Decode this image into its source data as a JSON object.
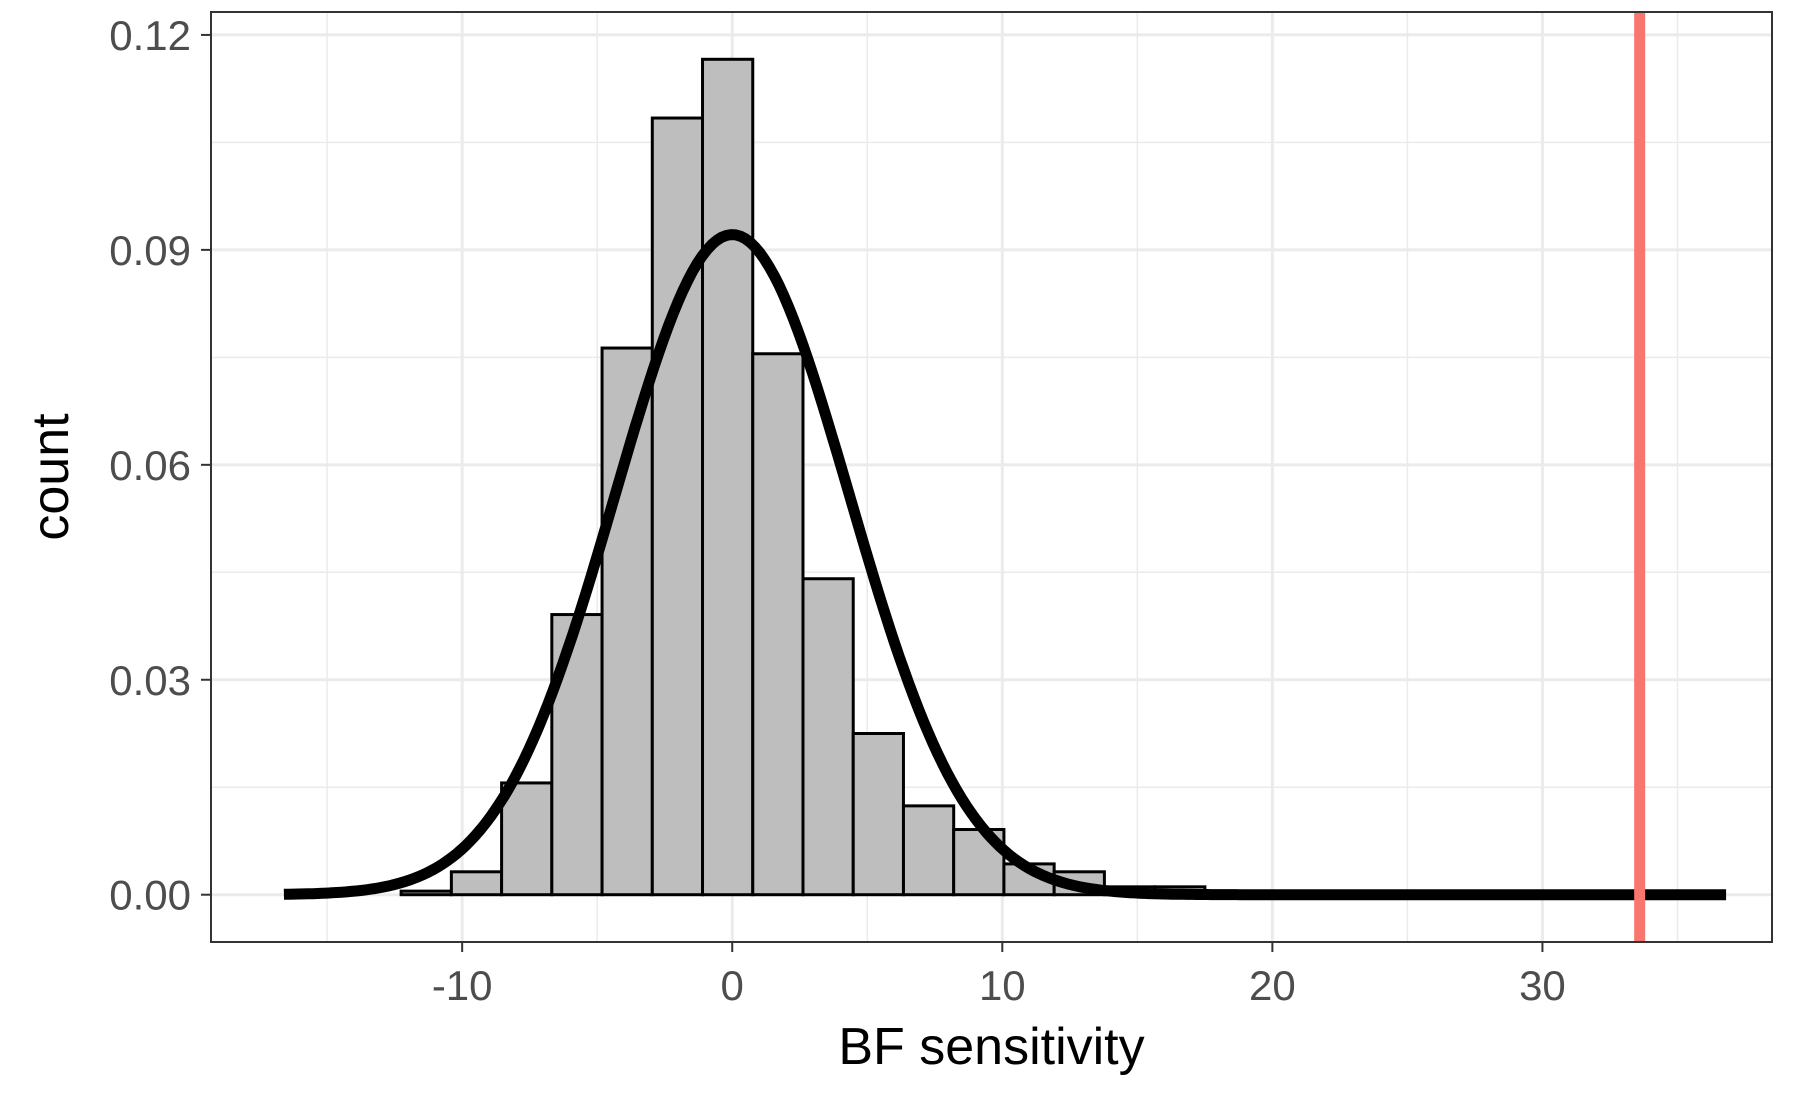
{
  "chart_data": {
    "type": "bar",
    "title": "",
    "xlabel": "BF sensitivity",
    "ylabel": "count",
    "xlim": [
      -19.3,
      38.5
    ],
    "ylim": [
      -0.0066,
      0.1232
    ],
    "x_major_ticks": [
      -10,
      0,
      10,
      20,
      30
    ],
    "x_tick_labels": [
      "-10",
      "0",
      "10",
      "20",
      "30"
    ],
    "x_minor_ticks": [
      -15,
      -5,
      5,
      15,
      25,
      35
    ],
    "y_major_ticks": [
      0,
      0.03,
      0.06,
      0.09,
      0.12
    ],
    "y_tick_labels": [
      "0.00",
      "0.03",
      "0.06",
      "0.09",
      "0.12"
    ],
    "y_minor_ticks": [
      0.015,
      0.045,
      0.075,
      0.105
    ],
    "grid": true,
    "legend": "none",
    "histogram": {
      "bin_width": 1.86,
      "fill_color": "#bebebe",
      "outline_color": "#000000",
      "bins": [
        {
          "x0": -12.26,
          "x1": -10.4,
          "value": 0.0005
        },
        {
          "x0": -10.4,
          "x1": -8.54,
          "value": 0.0032
        },
        {
          "x0": -8.54,
          "x1": -6.68,
          "value": 0.0156
        },
        {
          "x0": -6.68,
          "x1": -4.82,
          "value": 0.0391
        },
        {
          "x0": -4.82,
          "x1": -2.96,
          "value": 0.0763
        },
        {
          "x0": -2.96,
          "x1": -1.1,
          "value": 0.1084
        },
        {
          "x0": -1.1,
          "x1": 0.76,
          "value": 0.1166
        },
        {
          "x0": 0.76,
          "x1": 2.62,
          "value": 0.0755
        },
        {
          "x0": 2.62,
          "x1": 4.48,
          "value": 0.0441
        },
        {
          "x0": 4.48,
          "x1": 6.34,
          "value": 0.0225
        },
        {
          "x0": 6.34,
          "x1": 8.2,
          "value": 0.0124
        },
        {
          "x0": 8.2,
          "x1": 10.06,
          "value": 0.0091
        },
        {
          "x0": 10.06,
          "x1": 11.92,
          "value": 0.0043
        },
        {
          "x0": 11.92,
          "x1": 13.78,
          "value": 0.0032
        },
        {
          "x0": 13.78,
          "x1": 15.64,
          "value": 0.0011
        },
        {
          "x0": 15.64,
          "x1": 17.5,
          "value": 0.0011
        }
      ]
    },
    "density_curve": {
      "distribution": "normal",
      "mean": 0.0,
      "sd": 4.33,
      "x_range": [
        -16.6,
        36.8
      ],
      "color": "#000000"
    },
    "reference_line": {
      "x": 33.6,
      "color": "#f8766d"
    }
  }
}
